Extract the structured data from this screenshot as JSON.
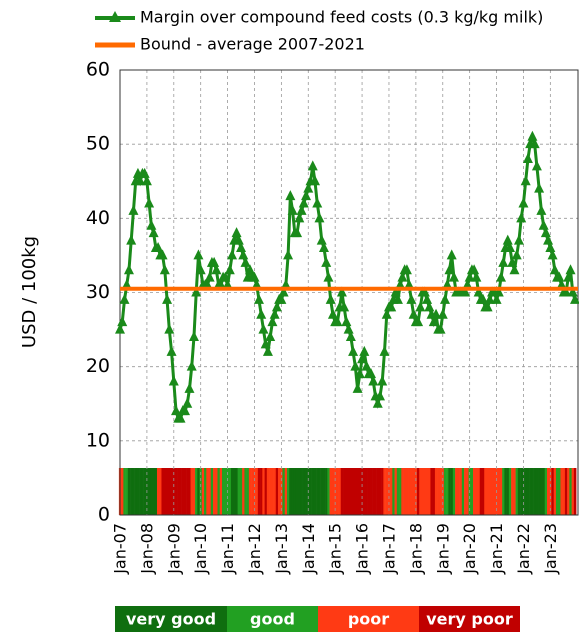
{
  "chart_data": {
    "type": "line",
    "y_label": "USD / 100kg",
    "categories": [
      "Jan-07",
      null,
      null,
      null,
      null,
      null,
      null,
      null,
      null,
      null,
      null,
      null,
      "Jan-08",
      null,
      null,
      null,
      null,
      null,
      null,
      null,
      null,
      null,
      null,
      null,
      "Jan-09",
      null,
      null,
      null,
      null,
      null,
      null,
      null,
      null,
      null,
      null,
      null,
      "Jan-10",
      null,
      null,
      null,
      null,
      null,
      null,
      null,
      null,
      null,
      null,
      null,
      "Jan-11",
      null,
      null,
      null,
      null,
      null,
      null,
      null,
      null,
      null,
      null,
      null,
      "Jan-12",
      null,
      null,
      null,
      null,
      null,
      null,
      null,
      null,
      null,
      null,
      null,
      "Jan-13",
      null,
      null,
      null,
      null,
      null,
      null,
      null,
      null,
      null,
      null,
      null,
      "Jan-14",
      null,
      null,
      null,
      null,
      null,
      null,
      null,
      null,
      null,
      null,
      null,
      "Jan-15",
      null,
      null,
      null,
      null,
      null,
      null,
      null,
      null,
      null,
      null,
      null,
      "Jan-16",
      null,
      null,
      null,
      null,
      null,
      null,
      null,
      null,
      null,
      null,
      null,
      "Jan-17",
      null,
      null,
      null,
      null,
      null,
      null,
      null,
      null,
      null,
      null,
      null,
      "Jan-18",
      null,
      null,
      null,
      null,
      null,
      null,
      null,
      null,
      null,
      null,
      null,
      "Jan-19",
      null,
      null,
      null,
      null,
      null,
      null,
      null,
      null,
      null,
      null,
      null,
      "Jan-20",
      null,
      null,
      null,
      null,
      null,
      null,
      null,
      null,
      null,
      null,
      null,
      "Jan-21",
      null,
      null,
      null,
      null,
      null,
      null,
      null,
      null,
      null,
      null,
      null,
      "Jan-22",
      null,
      null,
      null,
      null,
      null,
      null,
      null,
      null,
      null,
      null,
      null,
      "Jan-23",
      null,
      null,
      null,
      null,
      null,
      null,
      null,
      null,
      null,
      null,
      null
    ],
    "series": [
      {
        "name": "Margin over compound feed costs (0.3 kg/kg milk)",
        "color": "#1a8a1a",
        "marker": "triangle",
        "values": [
          25,
          26,
          29,
          31,
          33,
          37,
          41,
          45,
          46,
          45,
          46,
          46,
          45,
          42,
          39,
          38,
          36,
          36,
          35,
          35,
          33,
          29,
          25,
          22,
          18,
          14,
          13,
          13,
          14,
          14,
          15,
          17,
          20,
          24,
          30,
          35,
          33,
          31,
          31,
          31,
          32,
          34,
          34,
          33,
          31,
          31,
          32,
          32,
          31,
          33,
          35,
          37,
          38,
          37,
          36,
          35,
          34,
          32,
          33,
          32,
          32,
          31,
          29,
          27,
          25,
          23,
          22,
          24,
          26,
          27,
          28,
          29,
          29,
          30,
          31,
          35,
          43,
          41,
          38,
          38,
          40,
          41,
          42,
          43,
          44,
          45,
          47,
          45,
          42,
          40,
          37,
          36,
          34,
          32,
          29,
          27,
          26,
          26,
          28,
          30,
          28,
          26,
          25,
          24,
          22,
          20,
          17,
          19,
          21,
          22,
          20,
          19,
          19,
          18,
          16,
          15,
          16,
          18,
          22,
          27,
          28,
          28,
          29,
          30,
          29,
          31,
          32,
          33,
          33,
          31,
          29,
          27,
          26,
          26,
          28,
          30,
          30,
          29,
          28,
          27,
          26,
          27,
          25,
          25,
          27,
          29,
          31,
          33,
          35,
          32,
          30,
          30,
          30,
          30,
          30,
          31,
          32,
          33,
          33,
          32,
          30,
          29,
          29,
          28,
          28,
          29,
          30,
          30,
          29,
          30,
          32,
          34,
          36,
          37,
          36,
          34,
          33,
          35,
          37,
          40,
          42,
          45,
          48,
          50,
          51,
          50,
          47,
          44,
          41,
          39,
          38,
          37,
          36,
          35,
          33,
          32,
          32,
          31,
          30,
          30,
          32,
          33,
          30,
          29
        ]
      },
      {
        "name": "Bound - average 2007-2021",
        "color": "#ff6a00",
        "value": 30.5
      }
    ],
    "band": {
      "labels": [
        "very good",
        "good",
        "poor",
        "very poor"
      ],
      "colors": [
        "#0f6e0f",
        "#22a022",
        "#ff3a14",
        "#c00000"
      ],
      "values": [
        2,
        2,
        1,
        1,
        0,
        0,
        0,
        0,
        0,
        0,
        0,
        0,
        0,
        0,
        0,
        0,
        0,
        2,
        2,
        3,
        3,
        3,
        3,
        3,
        3,
        3,
        3,
        3,
        3,
        3,
        3,
        3,
        2,
        2,
        1,
        0,
        1,
        2,
        1,
        2,
        2,
        1,
        2,
        2,
        1,
        2,
        1,
        1,
        1,
        1,
        0,
        0,
        0,
        1,
        1,
        2,
        1,
        1,
        2,
        2,
        2,
        2,
        3,
        3,
        2,
        3,
        2,
        2,
        2,
        2,
        3,
        2,
        2,
        1,
        2,
        1,
        0,
        0,
        0,
        0,
        0,
        0,
        0,
        0,
        0,
        0,
        0,
        0,
        0,
        0,
        0,
        0,
        0,
        1,
        2,
        2,
        2,
        2,
        2,
        3,
        3,
        3,
        3,
        3,
        3,
        3,
        3,
        3,
        3,
        3,
        3,
        3,
        3,
        3,
        3,
        3,
        3,
        3,
        2,
        2,
        2,
        2,
        1,
        2,
        1,
        1,
        2,
        2,
        2,
        2,
        2,
        2,
        2,
        3,
        2,
        2,
        2,
        2,
        2,
        3,
        3,
        2,
        2,
        2,
        2,
        1,
        1,
        0,
        0,
        1,
        2,
        2,
        2,
        1,
        2,
        2,
        1,
        1,
        2,
        2,
        2,
        3,
        3,
        2,
        2,
        2,
        2,
        2,
        2,
        2,
        2,
        1,
        0,
        0,
        1,
        2,
        2,
        1,
        0,
        0,
        0,
        0,
        0,
        0,
        0,
        0,
        0,
        0,
        0,
        0,
        1,
        2,
        2,
        3,
        2,
        1,
        1,
        2,
        2,
        3,
        2,
        1,
        2,
        3
      ]
    },
    "ylim": [
      0,
      60
    ],
    "yticks": [
      0,
      10,
      20,
      30,
      40,
      50,
      60
    ],
    "grid": true
  }
}
